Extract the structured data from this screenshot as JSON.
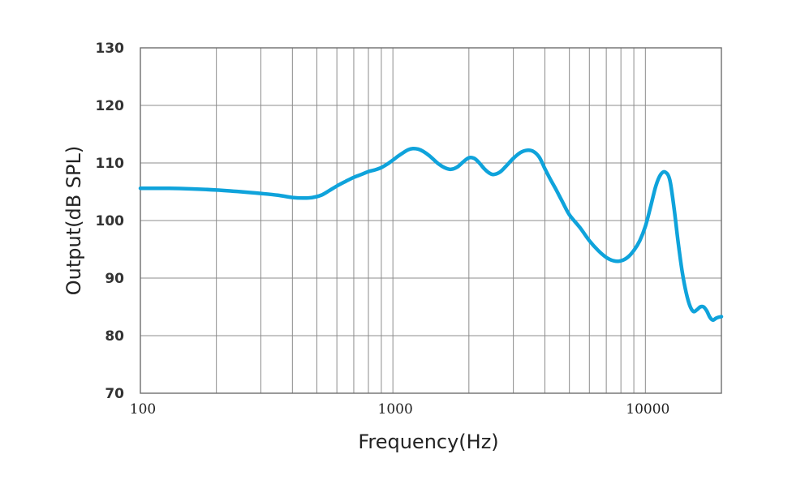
{
  "chart_data": {
    "type": "line",
    "title": "",
    "xlabel": "Frequency(Hz)",
    "ylabel": "Output(dB SPL)",
    "x_scale": "log",
    "xlim": [
      100,
      20000
    ],
    "ylim": [
      70,
      130
    ],
    "x_ticks": [
      100,
      1000,
      10000
    ],
    "x_tick_labels": [
      "100",
      "1000",
      "10000"
    ],
    "y_ticks": [
      70,
      80,
      90,
      100,
      110,
      120,
      130
    ],
    "y_tick_labels": [
      "70",
      "80",
      "90",
      "100",
      "110",
      "120",
      "130"
    ],
    "grid": true,
    "line_color": "#0fa3db",
    "grid_color": "#8c8c8c",
    "series": [
      {
        "x": [
          100,
          130,
          160,
          200,
          250,
          300,
          350,
          400,
          440,
          480,
          520,
          560,
          600,
          650,
          700,
          750,
          800,
          850,
          900,
          950,
          1000,
          1050,
          1100,
          1150,
          1200,
          1260,
          1320,
          1400,
          1500,
          1600,
          1700,
          1800,
          1900,
          2000,
          2100,
          2200,
          2300,
          2400,
          2500,
          2650,
          2800,
          3000,
          3200,
          3400,
          3600,
          3800,
          4000,
          4200,
          4400,
          4700,
          5000,
          5500,
          6000,
          6500,
          7000,
          7500,
          8000,
          8500,
          9000,
          9500,
          10000,
          10500,
          11000,
          11500,
          12000,
          12500,
          13000,
          13500,
          14000,
          14500,
          15000,
          15500,
          16000,
          16500,
          17000,
          17500,
          18000,
          18500,
          19000,
          19500,
          20000
        ],
        "y": [
          105.6,
          105.6,
          105.5,
          105.3,
          105.0,
          104.7,
          104.4,
          104.0,
          103.9,
          104.0,
          104.4,
          105.2,
          106.0,
          106.8,
          107.5,
          108.0,
          108.5,
          108.8,
          109.2,
          109.8,
          110.5,
          111.2,
          111.8,
          112.3,
          112.5,
          112.4,
          112.0,
          111.2,
          110.0,
          109.2,
          108.9,
          109.3,
          110.2,
          110.9,
          110.8,
          110.0,
          109.0,
          108.3,
          108.0,
          108.4,
          109.4,
          110.8,
          111.8,
          112.2,
          112.0,
          111.0,
          109.0,
          107.2,
          105.6,
          103.2,
          101.0,
          98.8,
          96.5,
          94.8,
          93.6,
          93.0,
          93.0,
          93.6,
          94.8,
          96.5,
          99.0,
          102.5,
          106.0,
          108.0,
          108.4,
          107.0,
          102.0,
          96.0,
          91.0,
          87.5,
          85.2,
          84.2,
          84.5,
          85.0,
          85.0,
          84.3,
          83.2,
          82.7,
          83.0,
          83.2,
          83.3
        ]
      }
    ]
  }
}
